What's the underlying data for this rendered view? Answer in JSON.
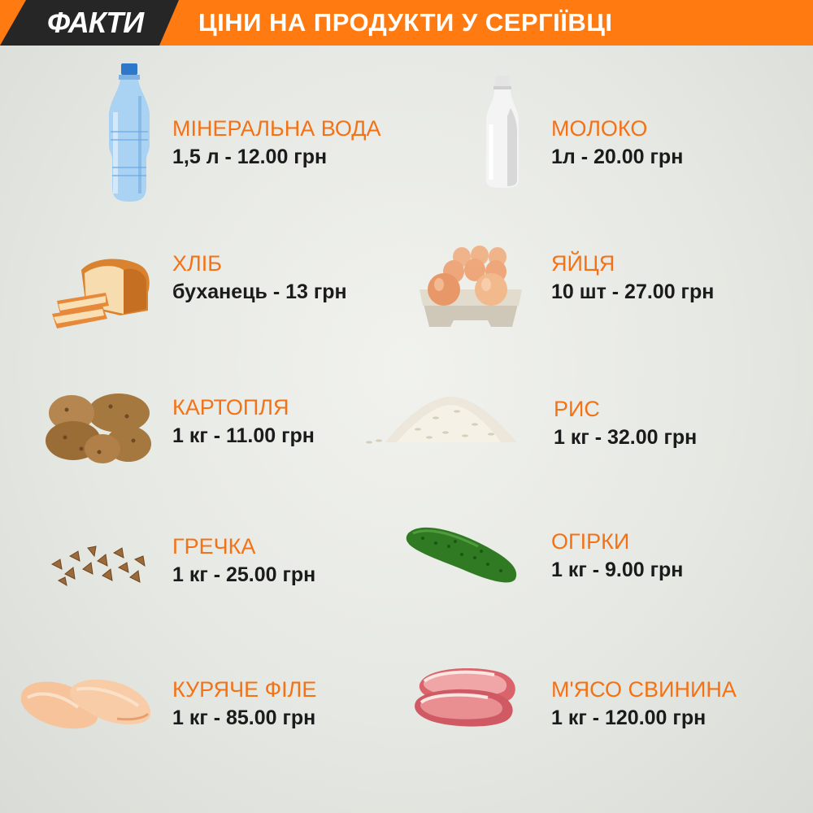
{
  "header": {
    "logo": "ФАКТИ",
    "title": "ЦІНИ НА ПРОДУКТИ У СЕРГІЇВЦІ"
  },
  "colors": {
    "accent": "#ff7a10",
    "name_text": "#f47216",
    "price_text": "#1b1b1b",
    "logo_bg": "#262626"
  },
  "products": [
    {
      "name": "МІНЕРАЛЬНА ВОДА",
      "price": "1,5 л - 12.00 грн",
      "icon": "water-bottle-icon"
    },
    {
      "name": "МОЛОКО",
      "price": "1л - 20.00 грн",
      "icon": "milk-bottle-icon"
    },
    {
      "name": "ХЛІБ",
      "price": "буханець - 13 грн",
      "icon": "bread-icon"
    },
    {
      "name": "ЯЙЦЯ",
      "price": "10 шт - 27.00 грн",
      "icon": "eggs-icon"
    },
    {
      "name": "КАРТОПЛЯ",
      "price": "1 кг - 11.00 грн",
      "icon": "potato-icon"
    },
    {
      "name": "РИС",
      "price": "1 кг - 32.00 грн",
      "icon": "rice-icon"
    },
    {
      "name": "ГРЕЧКА",
      "price": "1 кг - 25.00 грн",
      "icon": "buckwheat-icon"
    },
    {
      "name": "ОГІРКИ",
      "price": "1 кг - 9.00 грн",
      "icon": "cucumber-icon"
    },
    {
      "name": "КУРЯЧЕ ФІЛЕ",
      "price": "1 кг - 85.00 грн",
      "icon": "chicken-fillet-icon"
    },
    {
      "name": "М'ЯСО СВИНИНА",
      "price": "1 кг - 120.00 грн",
      "icon": "pork-meat-icon"
    }
  ]
}
